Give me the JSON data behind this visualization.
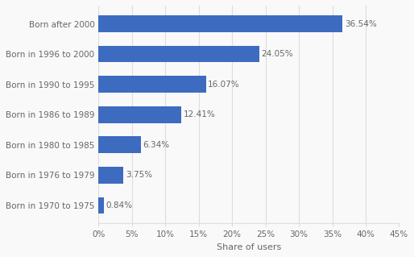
{
  "categories": [
    "Born after 2000",
    "Born in 1996 to 2000",
    "Born in 1990 to 1995",
    "Born in 1986 to 1989",
    "Born in 1980 to 1985",
    "Born in 1976 to 1979",
    "Born in 1970 to 1975"
  ],
  "values": [
    36.54,
    24.05,
    16.07,
    12.41,
    6.34,
    3.75,
    0.84
  ],
  "bar_color": "#3d6bbf",
  "label_color": "#666666",
  "background_color": "#f9f9f9",
  "grid_color": "#dddddd",
  "xlabel": "Share of users",
  "xlim": [
    0,
    45
  ],
  "xticks": [
    0,
    5,
    10,
    15,
    20,
    25,
    30,
    35,
    40,
    45
  ],
  "bar_height": 0.55,
  "value_label_fontsize": 7.5,
  "axis_label_fontsize": 8,
  "tick_label_fontsize": 7.5
}
